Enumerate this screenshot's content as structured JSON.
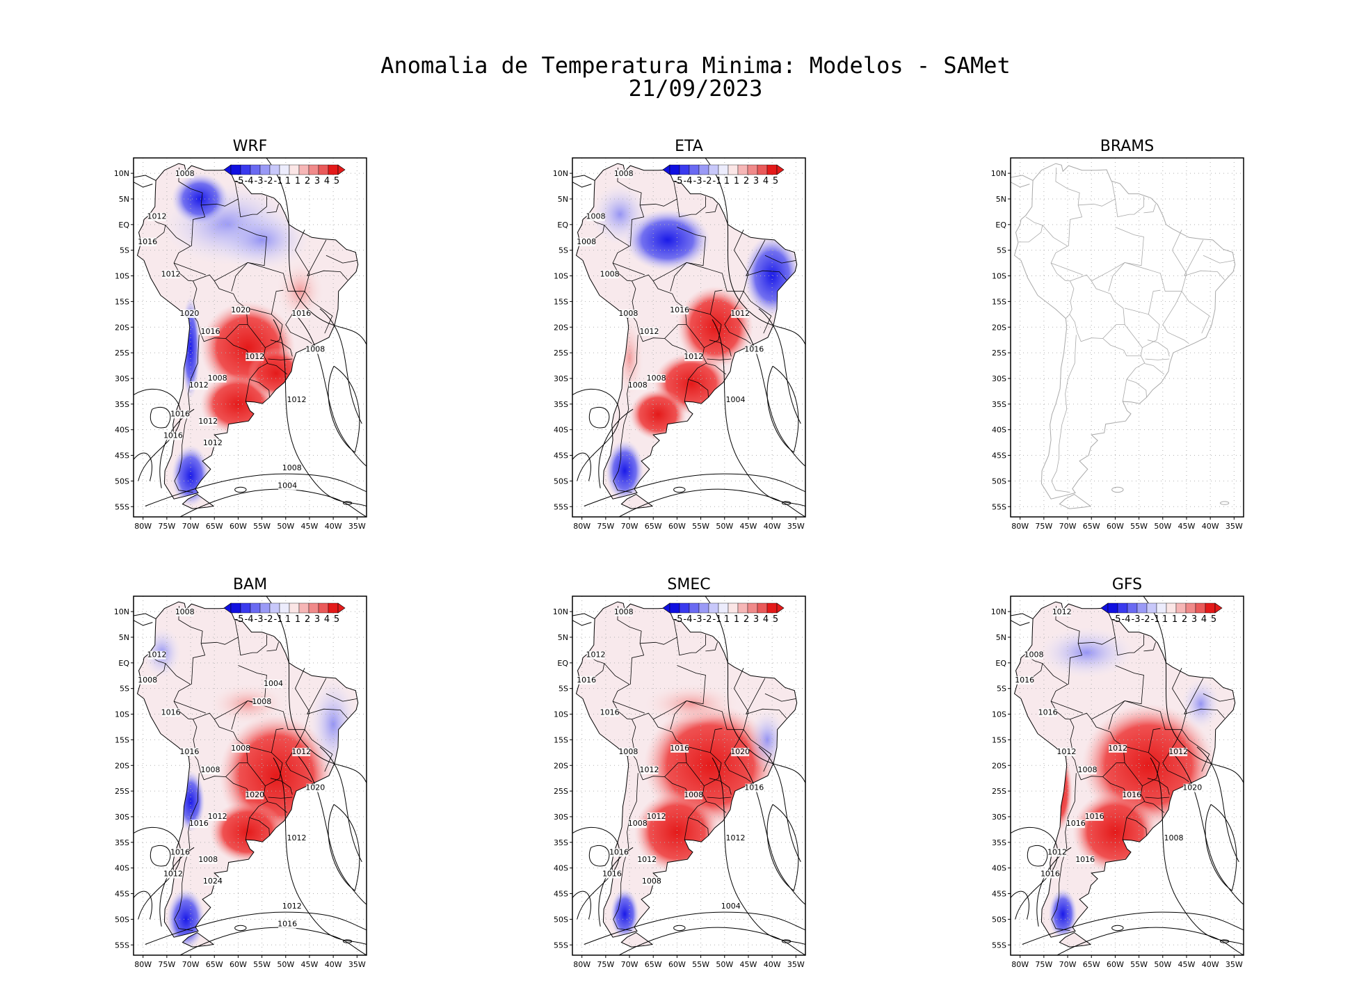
{
  "figure": {
    "title_line1": "Anomalia de Temperatura Minima: Modelos - SAMet",
    "title_line2": "21/09/2023"
  },
  "lat_ticks": [
    "10N",
    "5N",
    "EQ",
    "5S",
    "10S",
    "15S",
    "20S",
    "25S",
    "30S",
    "35S",
    "40S",
    "45S",
    "50S",
    "55S"
  ],
  "lon_ticks": [
    "80W",
    "75W",
    "70W",
    "65W",
    "60W",
    "55W",
    "50W",
    "45W",
    "40W",
    "35W"
  ],
  "colorbar": {
    "labels": [
      "-5",
      "-4",
      "-3",
      "-2",
      "-1",
      "1",
      "1",
      "2",
      "3",
      "4",
      "5"
    ],
    "colors": [
      "#1010e0",
      "#3a3aee",
      "#6a6af2",
      "#9a9af6",
      "#c8c8fa",
      "#ececfc",
      "#fbe6e6",
      "#f6b6b6",
      "#f08a8a",
      "#ea5a5a",
      "#e41a1a"
    ]
  },
  "colors": {
    "warm": "#e41a1a",
    "cold": "#1a1ae8",
    "contour": "#000000",
    "brams_outline": "#a8a8a8",
    "grid": "#b0b0b0"
  },
  "panels": [
    {
      "name": "WRF",
      "has_data": true,
      "isobars": [
        "1008",
        "1012",
        "1016",
        "1012",
        "1020",
        "1016",
        "1020",
        "1008",
        "1012",
        "1016",
        "1008",
        "1012",
        "1012",
        "1016",
        "1012",
        "1016",
        "1012",
        "1008",
        "1004"
      ]
    },
    {
      "name": "ETA",
      "has_data": true,
      "isobars": [
        "1008",
        "1008",
        "1008",
        "1008",
        "1008",
        "1012",
        "1016",
        "1008",
        "1012",
        "1012",
        "1016",
        "1008",
        "1004"
      ]
    },
    {
      "name": "BRAMS",
      "has_data": false,
      "isobars": []
    },
    {
      "name": "BAM",
      "has_data": true,
      "isobars": [
        "1008",
        "1012",
        "1008",
        "1016",
        "1016",
        "1008",
        "1008",
        "1012",
        "1020",
        "1012",
        "1020",
        "1016",
        "1012",
        "1016",
        "1008",
        "1012",
        "1024",
        "1012",
        "1016",
        "1008",
        "1004"
      ]
    },
    {
      "name": "SMEC",
      "has_data": true,
      "isobars": [
        "1008",
        "1012",
        "1016",
        "1016",
        "1008",
        "1012",
        "1016",
        "1012",
        "1008",
        "1020",
        "1016",
        "1008",
        "1012",
        "1016",
        "1012",
        "1016",
        "1008",
        "1004"
      ]
    },
    {
      "name": "GFS",
      "has_data": true,
      "isobars": [
        "1012",
        "1008",
        "1016",
        "1016",
        "1012",
        "1008",
        "1012",
        "1016",
        "1016",
        "1012",
        "1020",
        "1016",
        "1008",
        "1012",
        "1016",
        "1016"
      ]
    }
  ]
}
